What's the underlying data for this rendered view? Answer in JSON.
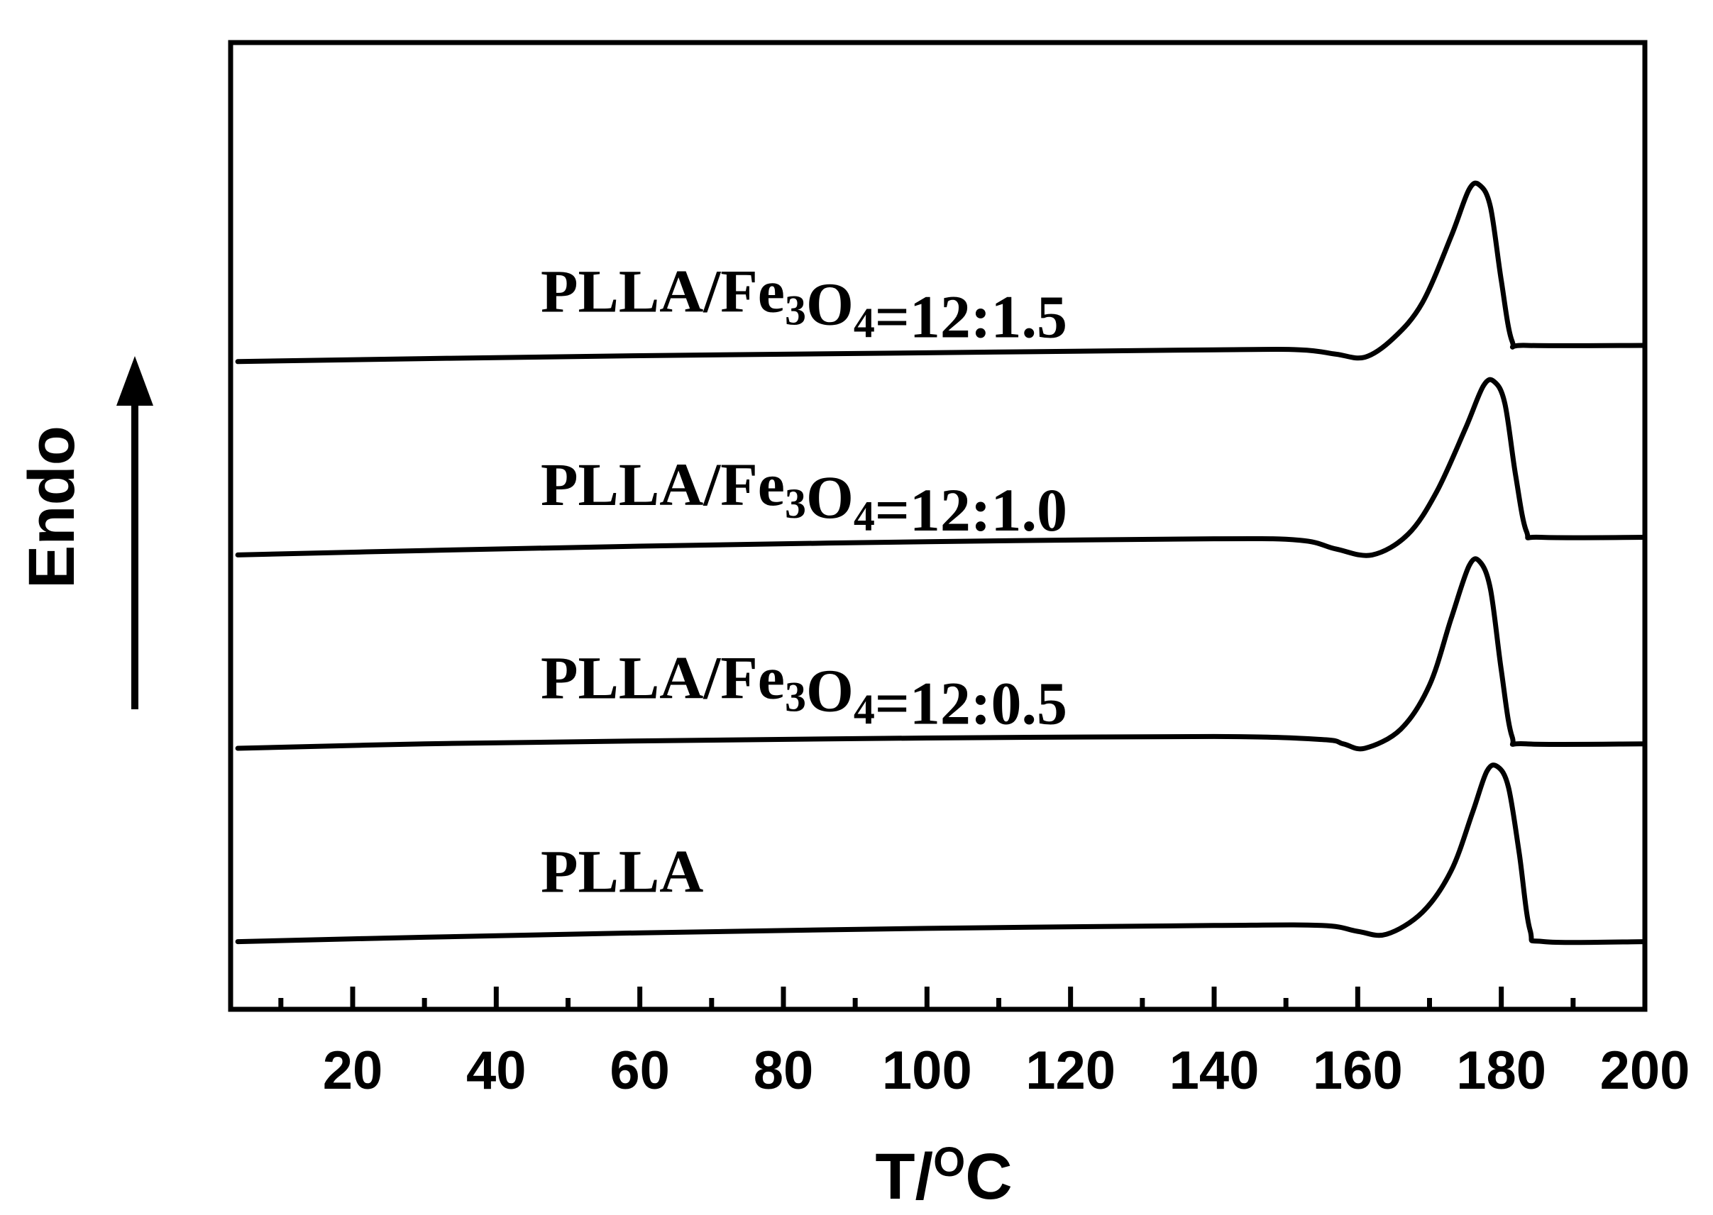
{
  "chart_data": {
    "type": "line",
    "xlabel": "T/",
    "xlabel_sup": "O",
    "xlabel_tail": "C",
    "ylabel": "Endo",
    "xlim": [
      3,
      200
    ],
    "x_ticks": [
      20,
      40,
      60,
      80,
      100,
      120,
      140,
      160,
      180,
      200
    ],
    "x_tick_labels": [
      "20",
      "40",
      "60",
      "80",
      "100",
      "120",
      "140",
      "160",
      "180",
      "200"
    ],
    "x_minor_ticks": [
      10,
      30,
      50,
      70,
      90,
      110,
      130,
      150,
      170,
      190
    ],
    "y_ticks_shown": false,
    "grid": false,
    "legend": "inline labels above each curve",
    "series": [
      {
        "name": "PLLA",
        "label_parts": [
          {
            "text": "PLLA",
            "sub": false
          }
        ],
        "offset": 0.07,
        "x": [
          4,
          30,
          60,
          100,
          140,
          155,
          160,
          164,
          169,
          173,
          176,
          178,
          179.5,
          181,
          182.5,
          184,
          186,
          200
        ],
        "y": [
          0,
          0.3,
          0.6,
          0.9,
          1.1,
          1.1,
          0.7,
          0.5,
          2.0,
          4.8,
          8.8,
          11.6,
          11.9,
          10.5,
          6.0,
          0.8,
          0.0,
          0.0
        ]
      },
      {
        "name": "PLLA/Fe3O4=12:0.5",
        "label_parts": [
          {
            "text": "PLLA/Fe",
            "sub": false
          },
          {
            "text": "3",
            "sub": true
          },
          {
            "text": "O",
            "sub": false
          },
          {
            "text": "4",
            "sub": true
          },
          {
            "text": "=12:0.5",
            "sub": false
          }
        ],
        "offset": 0.27,
        "x": [
          4,
          30,
          60,
          100,
          140,
          155,
          158,
          161,
          166,
          170,
          173,
          175.5,
          177,
          178.5,
          180,
          181.5,
          183.5,
          200
        ],
        "y": [
          0,
          0.3,
          0.5,
          0.7,
          0.8,
          0.6,
          0.3,
          0.0,
          1.3,
          4.3,
          8.8,
          12.4,
          12.7,
          10.8,
          5.3,
          0.8,
          0.3,
          0.3
        ]
      },
      {
        "name": "PLLA/Fe3O4=12:1.0",
        "label_parts": [
          {
            "text": "PLLA/Fe",
            "sub": false
          },
          {
            "text": "3",
            "sub": true
          },
          {
            "text": "O",
            "sub": false
          },
          {
            "text": "4",
            "sub": true
          },
          {
            "text": "=12:1.0",
            "sub": false
          }
        ],
        "offset": 0.47,
        "x": [
          4,
          30,
          60,
          100,
          140,
          152,
          157,
          162,
          167,
          171,
          175,
          177.5,
          179,
          180.5,
          182,
          183.5,
          185.5,
          200
        ],
        "y": [
          0,
          0.3,
          0.6,
          0.9,
          1.1,
          1.0,
          0.4,
          0.0,
          1.4,
          4.3,
          8.6,
          11.5,
          11.8,
          10.3,
          5.4,
          1.6,
          1.2,
          1.2
        ]
      },
      {
        "name": "PLLA/Fe3O4=12:1.5",
        "label_parts": [
          {
            "text": "PLLA/Fe",
            "sub": false
          },
          {
            "text": "3",
            "sub": true
          },
          {
            "text": "O",
            "sub": false
          },
          {
            "text": "4",
            "sub": true
          },
          {
            "text": "=12:1.5",
            "sub": false
          }
        ],
        "offset": 0.67,
        "x": [
          4,
          30,
          60,
          100,
          140,
          152,
          157,
          161,
          165,
          169,
          173,
          175.5,
          177,
          178.5,
          180,
          181.5,
          183.5,
          200
        ],
        "y": [
          0,
          0.2,
          0.4,
          0.6,
          0.8,
          0.8,
          0.5,
          0.3,
          1.6,
          4.0,
          8.5,
          11.7,
          12.0,
          10.5,
          5.5,
          1.4,
          1.1,
          1.1
        ]
      }
    ]
  }
}
